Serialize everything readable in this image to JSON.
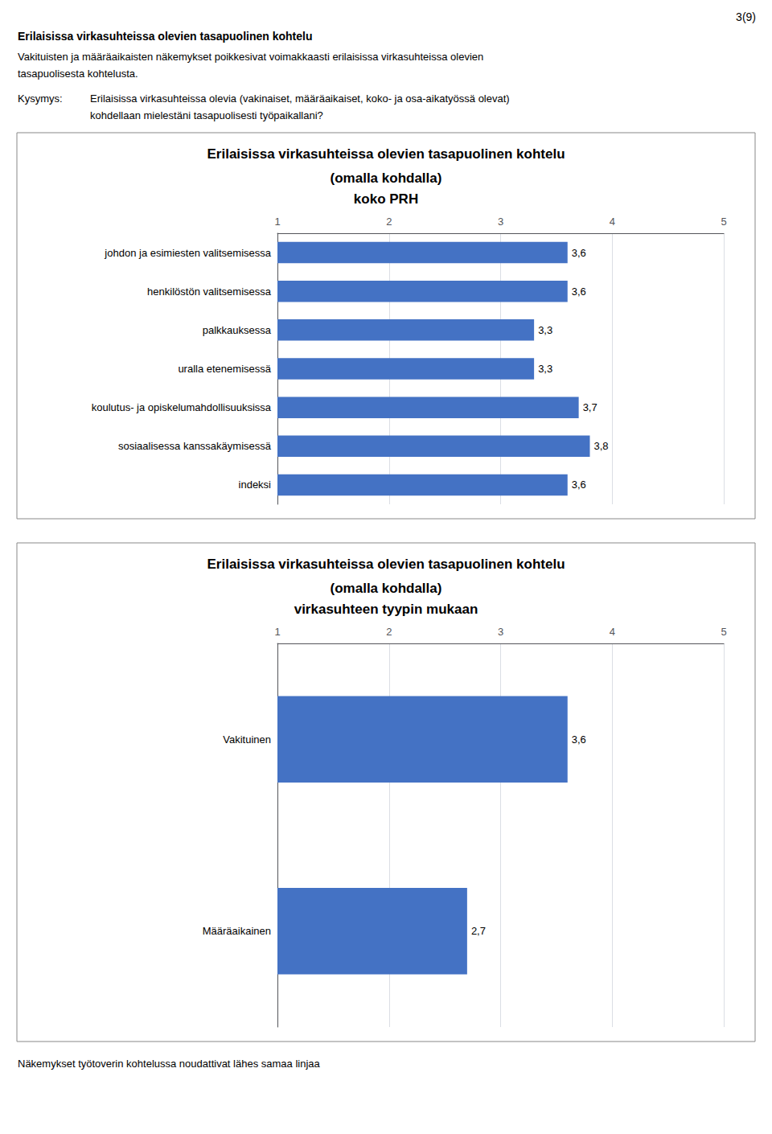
{
  "chart_data": [
    {
      "type": "bar",
      "orientation": "horizontal",
      "title": "Erilaisissa virkasuhteissa olevien tasapuolinen kohtelu",
      "subtitle": "(omalla kohdalla)\nkoko PRH",
      "annotations": [
        "3(9)",
        "Erilaisissa virkasuhteissa olevien tasapuolinen kohtelu",
        "Vakituisten ja määräaikaisten näkemykset poikkesivat voimakkaasti erilaisissa virkasuhteissa olevien\ntasapuolisesta kohtelusta.",
        "Kysymys:",
        "Erilaisissa virkasuhteissa olevia (vakinaiset, määräaikaiset, koko- ja osa-aikatyössä olevat)\nkohdellaan mielestäni tasapuolisesti työpaikallani?"
      ],
      "categories": [
        "johdon ja esimiesten valitsemisessa",
        "henkilöstön valitsemisessa",
        "palkkauksessa",
        "uralla etenemisessä",
        "koulutus- ja opiskelumahdollisuuksissa",
        "sosiaalisessa kanssakäymisessä",
        "indeksi"
      ],
      "values": [
        3.6,
        3.6,
        3.3,
        3.3,
        3.7,
        3.8,
        3.6
      ],
      "value_labels": [
        "3,6",
        "3,6",
        "3,3",
        "3,3",
        "3,7",
        "3,8",
        "3,6"
      ],
      "color": "#4472C4",
      "xlim": [
        1,
        5
      ],
      "xticks": [
        1,
        2,
        3,
        4,
        5
      ],
      "grid": true,
      "data_labels": true
    },
    {
      "type": "bar",
      "orientation": "horizontal",
      "title": "Erilaisissa virkasuhteissa olevien tasapuolinen kohtelu",
      "subtitle": "(omalla kohdalla)\nvirkasuhteen tyypin mukaan",
      "annotations": [
        "Näkemykset työtoverin kohtelussa noudattivat lähes samaa linjaa"
      ],
      "categories": [
        "Vakituinen",
        "Määräaikainen"
      ],
      "values": [
        3.6,
        2.7
      ],
      "value_labels": [
        "3,6",
        "2,7"
      ],
      "color": "#4472C4",
      "xlim": [
        1,
        5
      ],
      "xticks": [
        1,
        2,
        3,
        4,
        5
      ],
      "grid": true,
      "data_labels": true
    }
  ]
}
